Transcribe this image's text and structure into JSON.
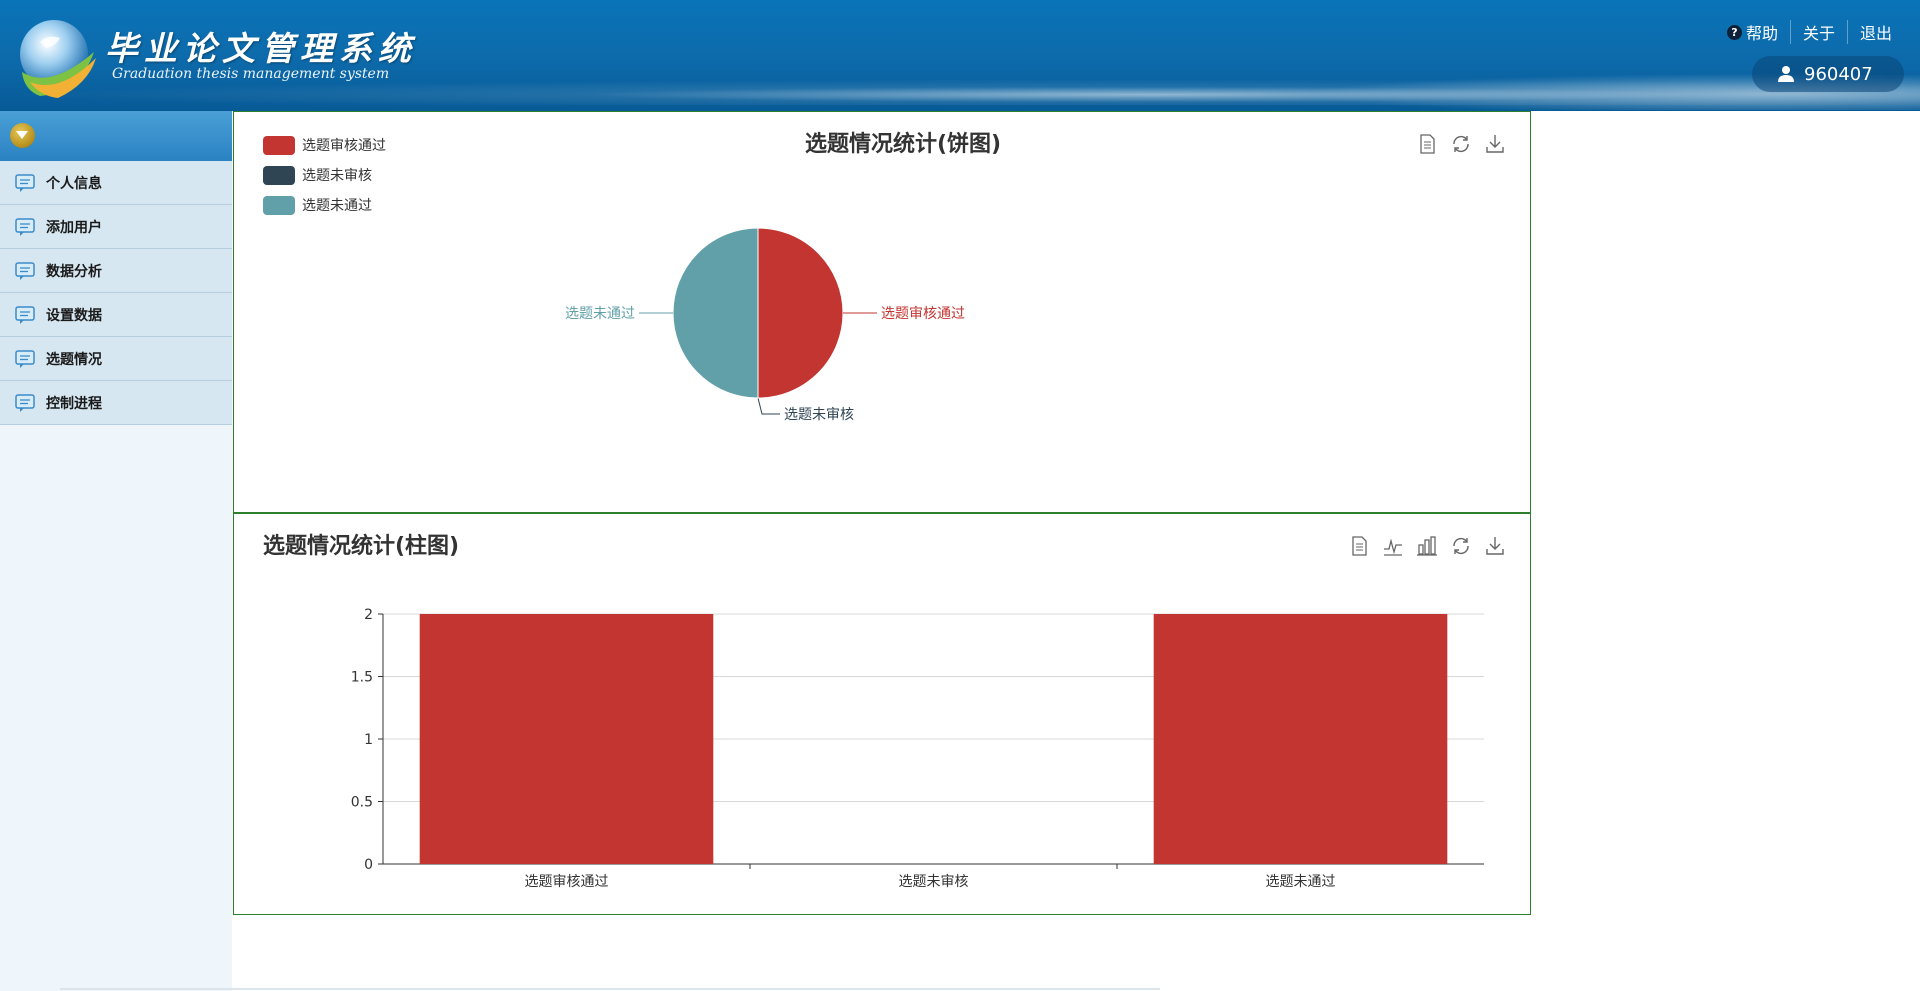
{
  "header": {
    "title": "毕业论文管理系统",
    "subtitle": "Graduation thesis management system",
    "links": {
      "help": "帮助",
      "about": "关于",
      "logout": "退出"
    },
    "user_id": "960407"
  },
  "sidebar": {
    "items": [
      {
        "label": "个人信息"
      },
      {
        "label": "添加用户"
      },
      {
        "label": "数据分析"
      },
      {
        "label": "设置数据"
      },
      {
        "label": "选题情况"
      },
      {
        "label": "控制进程"
      }
    ]
  },
  "pie_panel": {
    "title": "选题情况统计(饼图)",
    "tools": [
      "data-view-icon",
      "refresh-icon",
      "download-icon"
    ]
  },
  "bar_panel": {
    "title": "选题情况统计(柱图)",
    "tools": [
      "data-view-icon",
      "line-chart-icon",
      "bar-chart-icon",
      "refresh-icon",
      "download-icon"
    ]
  },
  "chart_data": [
    {
      "type": "pie",
      "title": "选题情况统计(饼图)",
      "legend": "top-left",
      "categories": [
        "选题审核通过",
        "选题未审核",
        "选题未通过"
      ],
      "values": [
        2,
        0,
        2
      ],
      "colors": [
        "#c23531",
        "#2f4554",
        "#61a0a8"
      ]
    },
    {
      "type": "bar",
      "title": "选题情况统计(柱图)",
      "categories": [
        "选题审核通过",
        "选题未审核",
        "选题未通过"
      ],
      "values": [
        2,
        0,
        2
      ],
      "ylim": [
        0,
        2
      ],
      "yticks": [
        "0",
        "0.5",
        "1",
        "1.5",
        "2"
      ],
      "grid": true,
      "color": "#c23531"
    }
  ]
}
